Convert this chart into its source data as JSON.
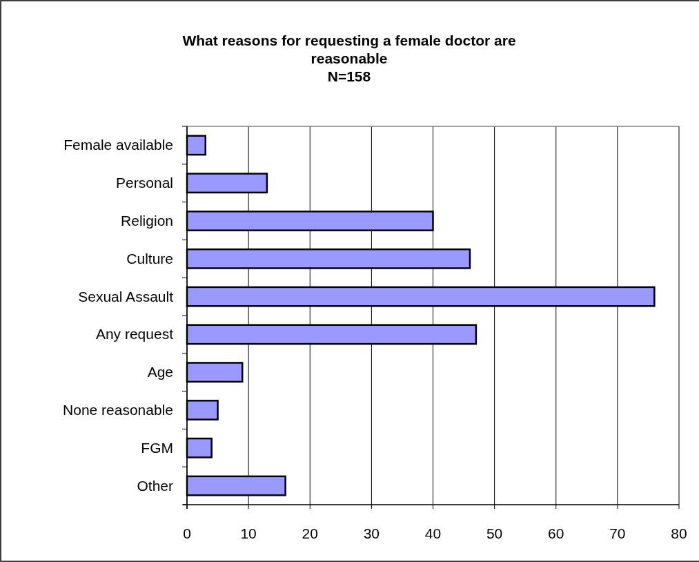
{
  "chart_data": {
    "type": "bar",
    "orientation": "horizontal",
    "title": "What reasons for requesting a female doctor are reasonable\nN=158",
    "categories": [
      "Female available",
      "Personal",
      "Religion",
      "Culture",
      "Sexual Assault",
      "Any request",
      "Age",
      "None reasonable",
      "FGM",
      "Other"
    ],
    "values": [
      3,
      13,
      40,
      46,
      76,
      47,
      9,
      5,
      4,
      16
    ],
    "color": "#9999ff",
    "xlim": [
      0,
      80
    ],
    "xticks": [
      0,
      10,
      20,
      30,
      40,
      50,
      60,
      70,
      80
    ],
    "grid": "x"
  }
}
